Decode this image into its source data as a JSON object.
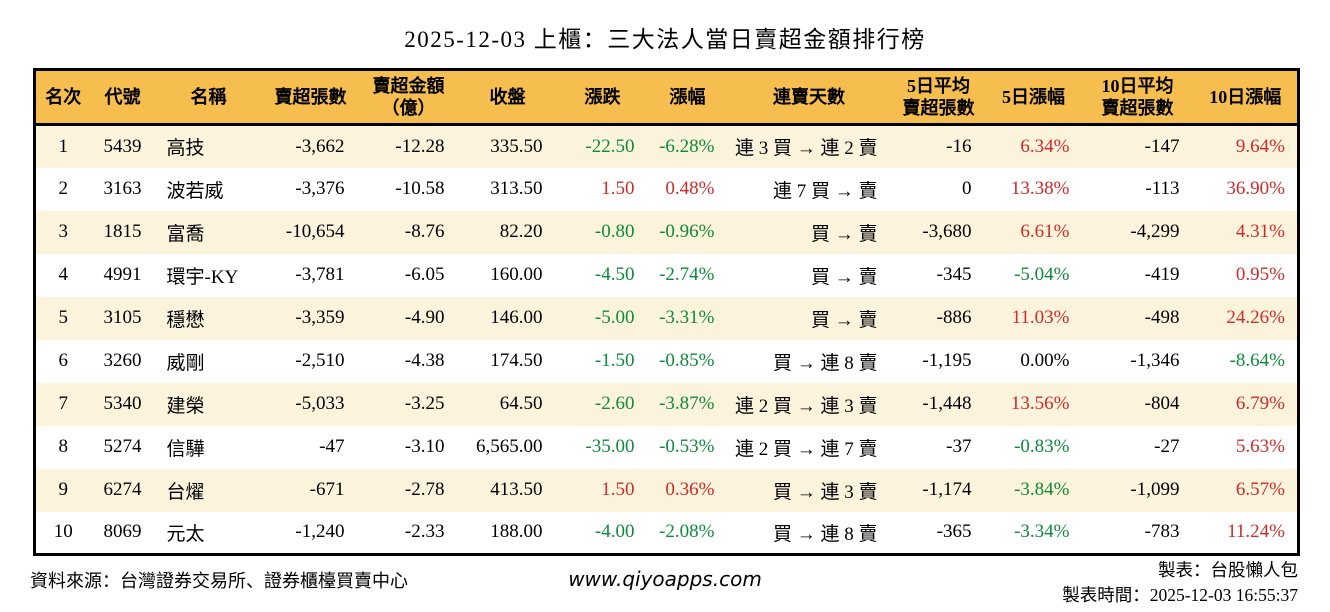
{
  "title": "2025-12-03 上櫃：三大法人當日賣超金額排行榜",
  "colors": {
    "up_red": "#d02a2a",
    "down_green": "#0f8a3d",
    "header_bg": "#f6be4f",
    "row_alt_bg": "#fcf3dc",
    "border": "#000000"
  },
  "chart_data": {
    "type": "table",
    "title": "2025-12-03 上櫃：三大法人當日賣超金額排行榜",
    "columns": [
      "名次",
      "代號",
      "名稱",
      "賣超張數",
      "賣超金額\n（億）",
      "收盤",
      "漲跌",
      "漲幅",
      "連賣天數",
      "5日平均\n賣超張數",
      "5日漲幅",
      "10日平均\n賣超張數",
      "10日漲幅"
    ],
    "rows": [
      {
        "rank": "1",
        "code": "5439",
        "name": "高技",
        "net_sell_volume": "-3,662",
        "net_sell_amount": "-12.28",
        "close": "335.50",
        "change": "-22.50",
        "change_color": "down",
        "change_pct": "-6.28%",
        "change_pct_color": "down",
        "streak": "連 3 買 → 連 2 賣",
        "avg5_net_sell": "-16",
        "pct5": "6.34%",
        "pct5_color": "up",
        "avg10_net_sell": "-147",
        "pct10": "9.64%",
        "pct10_color": "up"
      },
      {
        "rank": "2",
        "code": "3163",
        "name": "波若威",
        "net_sell_volume": "-3,376",
        "net_sell_amount": "-10.58",
        "close": "313.50",
        "change": "1.50",
        "change_color": "up",
        "change_pct": "0.48%",
        "change_pct_color": "up",
        "streak": "連 7 買 → 賣",
        "avg5_net_sell": "0",
        "pct5": "13.38%",
        "pct5_color": "up",
        "avg10_net_sell": "-113",
        "pct10": "36.90%",
        "pct10_color": "up"
      },
      {
        "rank": "3",
        "code": "1815",
        "name": "富喬",
        "net_sell_volume": "-10,654",
        "net_sell_amount": "-8.76",
        "close": "82.20",
        "change": "-0.80",
        "change_color": "down",
        "change_pct": "-0.96%",
        "change_pct_color": "down",
        "streak": "買 → 賣",
        "avg5_net_sell": "-3,680",
        "pct5": "6.61%",
        "pct5_color": "up",
        "avg10_net_sell": "-4,299",
        "pct10": "4.31%",
        "pct10_color": "up"
      },
      {
        "rank": "4",
        "code": "4991",
        "name": "環宇-KY",
        "net_sell_volume": "-3,781",
        "net_sell_amount": "-6.05",
        "close": "160.00",
        "change": "-4.50",
        "change_color": "down",
        "change_pct": "-2.74%",
        "change_pct_color": "down",
        "streak": "買 → 賣",
        "avg5_net_sell": "-345",
        "pct5": "-5.04%",
        "pct5_color": "down",
        "avg10_net_sell": "-419",
        "pct10": "0.95%",
        "pct10_color": "up"
      },
      {
        "rank": "5",
        "code": "3105",
        "name": "穩懋",
        "net_sell_volume": "-3,359",
        "net_sell_amount": "-4.90",
        "close": "146.00",
        "change": "-5.00",
        "change_color": "down",
        "change_pct": "-3.31%",
        "change_pct_color": "down",
        "streak": "買 → 賣",
        "avg5_net_sell": "-886",
        "pct5": "11.03%",
        "pct5_color": "up",
        "avg10_net_sell": "-498",
        "pct10": "24.26%",
        "pct10_color": "up"
      },
      {
        "rank": "6",
        "code": "3260",
        "name": "威剛",
        "net_sell_volume": "-2,510",
        "net_sell_amount": "-4.38",
        "close": "174.50",
        "change": "-1.50",
        "change_color": "down",
        "change_pct": "-0.85%",
        "change_pct_color": "down",
        "streak": "買 → 連 8 賣",
        "avg5_net_sell": "-1,195",
        "pct5": "0.00%",
        "pct5_color": "flat",
        "avg10_net_sell": "-1,346",
        "pct10": "-8.64%",
        "pct10_color": "down"
      },
      {
        "rank": "7",
        "code": "5340",
        "name": "建榮",
        "net_sell_volume": "-5,033",
        "net_sell_amount": "-3.25",
        "close": "64.50",
        "change": "-2.60",
        "change_color": "down",
        "change_pct": "-3.87%",
        "change_pct_color": "down",
        "streak": "連 2 買 → 連 3 賣",
        "avg5_net_sell": "-1,448",
        "pct5": "13.56%",
        "pct5_color": "up",
        "avg10_net_sell": "-804",
        "pct10": "6.79%",
        "pct10_color": "up"
      },
      {
        "rank": "8",
        "code": "5274",
        "name": "信驊",
        "net_sell_volume": "-47",
        "net_sell_amount": "-3.10",
        "close": "6,565.00",
        "change": "-35.00",
        "change_color": "down",
        "change_pct": "-0.53%",
        "change_pct_color": "down",
        "streak": "連 2 買 → 連 7 賣",
        "avg5_net_sell": "-37",
        "pct5": "-0.83%",
        "pct5_color": "down",
        "avg10_net_sell": "-27",
        "pct10": "5.63%",
        "pct10_color": "up"
      },
      {
        "rank": "9",
        "code": "6274",
        "name": "台燿",
        "net_sell_volume": "-671",
        "net_sell_amount": "-2.78",
        "close": "413.50",
        "change": "1.50",
        "change_color": "up",
        "change_pct": "0.36%",
        "change_pct_color": "up",
        "streak": "買 → 連 3 賣",
        "avg5_net_sell": "-1,174",
        "pct5": "-3.84%",
        "pct5_color": "down",
        "avg10_net_sell": "-1,099",
        "pct10": "6.57%",
        "pct10_color": "up"
      },
      {
        "rank": "10",
        "code": "8069",
        "name": "元太",
        "net_sell_volume": "-1,240",
        "net_sell_amount": "-2.33",
        "close": "188.00",
        "change": "-4.00",
        "change_color": "down",
        "change_pct": "-2.08%",
        "change_pct_color": "down",
        "streak": "買 → 連 8 賣",
        "avg5_net_sell": "-365",
        "pct5": "-3.34%",
        "pct5_color": "down",
        "avg10_net_sell": "-783",
        "pct10": "11.24%",
        "pct10_color": "up"
      }
    ]
  },
  "footer": {
    "source": "資料來源：台灣證券交易所、證券櫃檯買賣中心",
    "website": "www.qiyoapps.com",
    "author": "製表：台股懶人包",
    "generated_at": "製表時間：2025-12-03 16:55:37"
  }
}
